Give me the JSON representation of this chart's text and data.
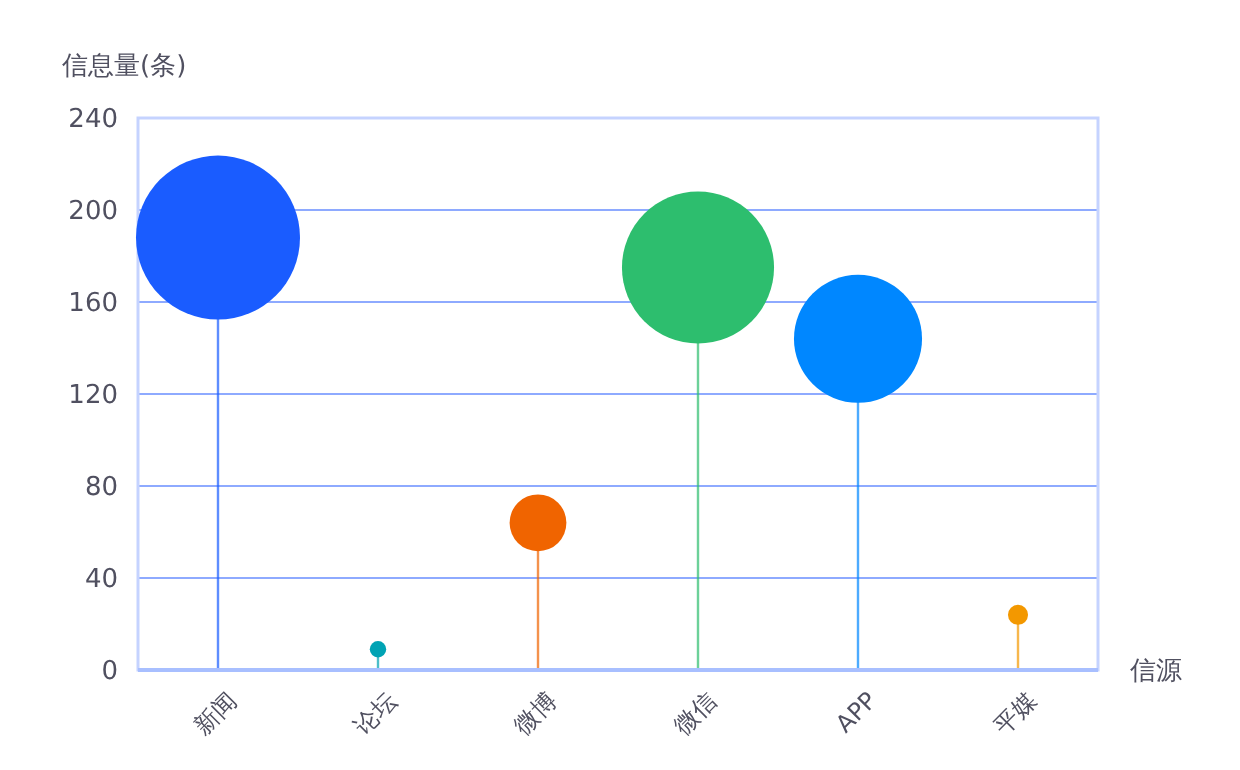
{
  "chart_data": {
    "type": "lollipop",
    "xlabel": "信源",
    "ylabel": "信息量(条)",
    "categories": [
      "新闻",
      "论坛",
      "微博",
      "微信",
      "APP",
      "平媒"
    ],
    "values": [
      188,
      9,
      64,
      175,
      144,
      24
    ],
    "sizes": [
      1,
      0.01,
      0.12,
      0.86,
      0.61,
      0.015
    ],
    "colors": [
      "#1a5cff",
      "#00a3b4",
      "#f06400",
      "#2dbe6e",
      "#0087ff",
      "#f39800"
    ],
    "ylim": [
      0,
      240
    ],
    "yticks": [
      0,
      40,
      80,
      120,
      160,
      200,
      240
    ],
    "grid": "y"
  }
}
